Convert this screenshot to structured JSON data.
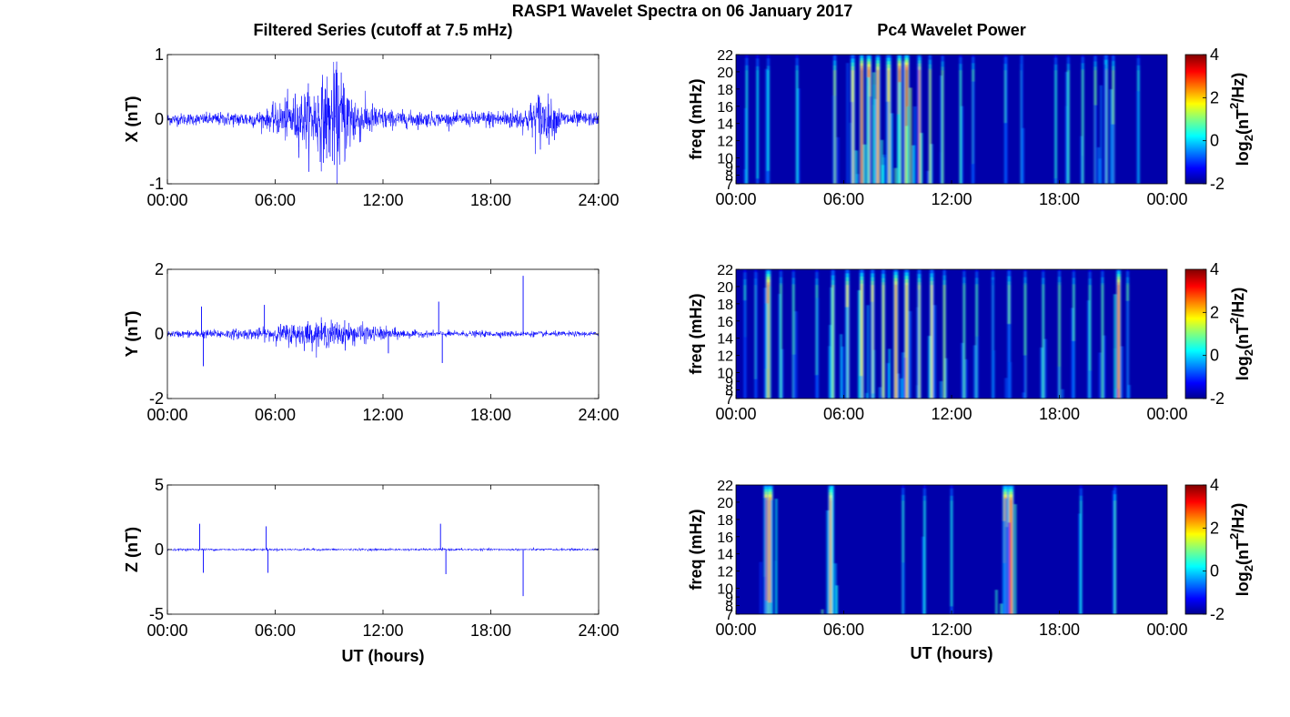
{
  "figure": {
    "title": "RASP1 Wavelet Spectra on 06 January 2017",
    "left_title": "Filtered Series (cutoff at 7.5 mHz)",
    "right_title": "Pc4 Wavelet Power",
    "xlabel": "UT (hours)"
  },
  "colors": {
    "trace": "#0000ff",
    "axis": "#000000",
    "background": "#ffffff",
    "colormap": "jet"
  },
  "chart_data": [
    {
      "type": "line",
      "panel": "X",
      "ylabel": "X (nT)",
      "xlim": [
        0,
        24
      ],
      "ylim": [
        -1,
        1
      ],
      "x_ticks": [
        "00:00",
        "06:00",
        "12:00",
        "18:00",
        "24:00"
      ],
      "y_ticks": [
        "-1",
        "0",
        "1"
      ],
      "series": [
        {
          "color": "#0000ff",
          "x": [
            0,
            6,
            12,
            18,
            24
          ],
          "y": [
            0,
            0,
            0,
            0,
            0
          ]
        }
      ],
      "activity_envelope": {
        "x": [
          0,
          2,
          5.5,
          6.5,
          8,
          9.5,
          10.5,
          11,
          12.5,
          16,
          18,
          20,
          20.7,
          22,
          24
        ],
        "amp": [
          0.1,
          0.1,
          0.15,
          0.35,
          0.55,
          0.9,
          0.45,
          0.3,
          0.15,
          0.1,
          0.15,
          0.2,
          0.5,
          0.15,
          0.1
        ]
      }
    },
    {
      "type": "line",
      "panel": "Y",
      "ylabel": "Y (nT)",
      "xlim": [
        0,
        24
      ],
      "ylim": [
        -2,
        2
      ],
      "x_ticks": [
        "00:00",
        "06:00",
        "12:00",
        "18:00",
        "24:00"
      ],
      "y_ticks": [
        "-2",
        "0",
        "2"
      ],
      "series": [
        {
          "color": "#0000ff",
          "x": [
            0,
            6,
            12,
            18,
            24
          ],
          "y": [
            0,
            0,
            0,
            0,
            0
          ]
        }
      ],
      "activity_envelope": {
        "x": [
          0,
          5.5,
          7,
          9,
          10.5,
          11.5,
          14,
          18,
          24
        ],
        "amp": [
          0.1,
          0.2,
          0.4,
          0.45,
          0.35,
          0.25,
          0.1,
          0.1,
          0.08
        ]
      },
      "spikes": [
        {
          "x": 1.9,
          "y": 0.85
        },
        {
          "x": 2.0,
          "y": -1.0
        },
        {
          "x": 5.4,
          "y": 0.9
        },
        {
          "x": 15.1,
          "y": 1.0
        },
        {
          "x": 15.3,
          "y": -0.9
        },
        {
          "x": 19.8,
          "y": 1.8
        },
        {
          "x": 12.3,
          "y": -0.6
        }
      ]
    },
    {
      "type": "line",
      "panel": "Z",
      "ylabel": "Z (nT)",
      "xlim": [
        0,
        24
      ],
      "ylim": [
        -5,
        5
      ],
      "x_ticks": [
        "00:00",
        "06:00",
        "12:00",
        "18:00",
        "24:00"
      ],
      "y_ticks": [
        "-5",
        "0",
        "5"
      ],
      "series": [
        {
          "color": "#0000ff",
          "x": [
            0,
            6,
            12,
            18,
            24
          ],
          "y": [
            0,
            0,
            0,
            0,
            0
          ]
        }
      ],
      "activity_envelope": {
        "x": [
          0,
          24
        ],
        "amp": [
          0.1,
          0.1
        ]
      },
      "spikes": [
        {
          "x": 1.8,
          "y": 2.0
        },
        {
          "x": 2.0,
          "y": -1.8
        },
        {
          "x": 5.5,
          "y": 1.8
        },
        {
          "x": 5.6,
          "y": -1.8
        },
        {
          "x": 15.2,
          "y": 2.0
        },
        {
          "x": 15.5,
          "y": -1.9
        },
        {
          "x": 19.8,
          "y": -3.6
        }
      ]
    },
    {
      "type": "heatmap",
      "panel": "X",
      "ylabel": "freq (mHz)",
      "xlim": [
        0,
        24
      ],
      "ylim": [
        7,
        22
      ],
      "x_ticks": [
        "00:00",
        "06:00",
        "12:00",
        "18:00",
        "00:00"
      ],
      "y_ticks": [
        "7",
        "8",
        "9",
        "10",
        "12",
        "14",
        "16",
        "18",
        "20",
        "22"
      ],
      "colorbar": {
        "label_main": "log",
        "label_sub": "2",
        "label_tail1": "(nT",
        "label_sup": "2",
        "label_tail2": "/Hz)",
        "range": [
          -2,
          4
        ],
        "ticks": [
          "-2",
          "0",
          "2",
          "4"
        ]
      },
      "bursts": [
        [
          0.6,
          0.4,
          0.5
        ],
        [
          1.2,
          0.3,
          0.4
        ],
        [
          1.8,
          0.35,
          0.5
        ],
        [
          3.4,
          0.4,
          0.6
        ],
        [
          5.5,
          1.2,
          1.0
        ],
        [
          6.5,
          1.8,
          1.5
        ],
        [
          7.0,
          3.5,
          1.4
        ],
        [
          7.4,
          3.2,
          1.8
        ],
        [
          7.9,
          2.5,
          1.6
        ],
        [
          8.5,
          2.2,
          1.8
        ],
        [
          9.1,
          3.5,
          1.6
        ],
        [
          9.5,
          3.8,
          1.8
        ],
        [
          10.2,
          2.5,
          1.4
        ],
        [
          10.8,
          1.4,
          0.9
        ],
        [
          11.5,
          1.0,
          0.6
        ],
        [
          12.5,
          0.6,
          0.4
        ],
        [
          13.2,
          0.7,
          0.5
        ],
        [
          15.0,
          0.6,
          0.5
        ],
        [
          15.9,
          0.6,
          0.5
        ],
        [
          17.8,
          0.5,
          0.4
        ],
        [
          18.5,
          0.6,
          0.5
        ],
        [
          19.3,
          0.7,
          0.5
        ],
        [
          20.0,
          1.0,
          0.8
        ],
        [
          20.6,
          1.4,
          1.3
        ],
        [
          21.0,
          1.1,
          0.9
        ],
        [
          22.4,
          0.4,
          0.4
        ]
      ]
    },
    {
      "type": "heatmap",
      "panel": "Y",
      "ylabel": "freq (mHz)",
      "xlim": [
        0,
        24
      ],
      "ylim": [
        7,
        22
      ],
      "x_ticks": [
        "00:00",
        "06:00",
        "12:00",
        "18:00",
        "00:00"
      ],
      "y_ticks": [
        "7",
        "8",
        "9",
        "10",
        "12",
        "14",
        "16",
        "18",
        "20",
        "22"
      ],
      "colorbar": {
        "label_main": "log",
        "label_sub": "2",
        "label_tail1": "(nT",
        "label_sup": "2",
        "label_tail2": "/Hz)",
        "range": [
          -2,
          4
        ],
        "ticks": [
          "-2",
          "0",
          "2",
          "4"
        ]
      },
      "bursts": [
        [
          0.5,
          0.5,
          0.5
        ],
        [
          1.1,
          0.6,
          0.5
        ],
        [
          1.8,
          3.0,
          1.8
        ],
        [
          2.5,
          0.8,
          0.6
        ],
        [
          3.2,
          0.7,
          0.6
        ],
        [
          4.5,
          0.6,
          0.5
        ],
        [
          5.4,
          1.2,
          1.2
        ],
        [
          6.2,
          1.8,
          1.4
        ],
        [
          7.0,
          2.0,
          1.5
        ],
        [
          7.6,
          1.8,
          1.3
        ],
        [
          8.2,
          1.6,
          1.2
        ],
        [
          8.9,
          2.5,
          1.6
        ],
        [
          9.5,
          2.2,
          1.7
        ],
        [
          10.2,
          1.6,
          1.2
        ],
        [
          10.9,
          1.8,
          1.4
        ],
        [
          11.6,
          1.2,
          0.9
        ],
        [
          12.7,
          0.8,
          0.6
        ],
        [
          13.4,
          0.7,
          0.5
        ],
        [
          14.3,
          0.8,
          0.6
        ],
        [
          15.2,
          1.0,
          1.1
        ],
        [
          16.1,
          0.8,
          0.6
        ],
        [
          17.1,
          0.7,
          0.6
        ],
        [
          18.0,
          0.9,
          0.7
        ],
        [
          18.8,
          0.7,
          0.6
        ],
        [
          19.7,
          0.6,
          0.5
        ],
        [
          20.4,
          0.8,
          0.6
        ],
        [
          21.3,
          3.0,
          1.5
        ],
        [
          21.8,
          0.8,
          0.7
        ]
      ]
    },
    {
      "type": "heatmap",
      "panel": "Z",
      "ylabel": "freq (mHz)",
      "xlim": [
        0,
        24
      ],
      "ylim": [
        7,
        22
      ],
      "x_ticks": [
        "00:00",
        "06:00",
        "12:00",
        "18:00",
        "00:00"
      ],
      "y_ticks": [
        "7",
        "8",
        "9",
        "10",
        "12",
        "14",
        "16",
        "18",
        "20",
        "22"
      ],
      "colorbar": {
        "label_main": "log",
        "label_sub": "2",
        "label_tail1": "(nT",
        "label_sup": "2",
        "label_tail2": "/Hz)",
        "range": [
          -2,
          4
        ],
        "ticks": [
          "-2",
          "0",
          "2",
          "4"
        ]
      },
      "bursts": [
        [
          1.7,
          3.2,
          2.0
        ],
        [
          1.9,
          3.2,
          2.0
        ],
        [
          5.3,
          3.0,
          2.0
        ],
        [
          15.0,
          3.2,
          2.0
        ],
        [
          15.3,
          3.2,
          2.0
        ],
        [
          9.3,
          0.5,
          0.4
        ],
        [
          10.5,
          0.4,
          0.4
        ],
        [
          12.0,
          0.4,
          0.4
        ],
        [
          21.1,
          0.6,
          0.5
        ],
        [
          19.2,
          0.4,
          0.4
        ]
      ]
    }
  ]
}
